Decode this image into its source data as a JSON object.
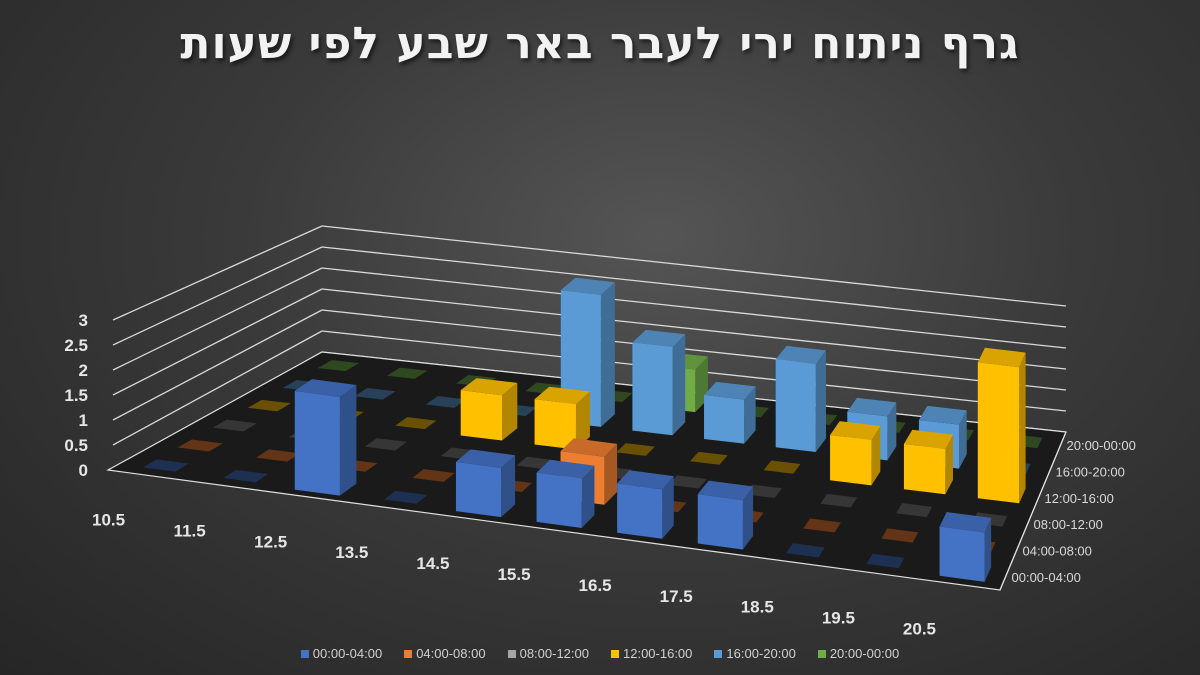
{
  "title": "גרף ניתוח ירי לעבר באר שבע לפי שעות",
  "legend": [
    {
      "label": "00:00-04:00",
      "color": "#4472c4"
    },
    {
      "label": "04:00-08:00",
      "color": "#ed7d31"
    },
    {
      "label": "08:00-12:00",
      "color": "#a5a5a5"
    },
    {
      "label": "12:00-16:00",
      "color": "#ffc000"
    },
    {
      "label": "16:00-20:00",
      "color": "#5b9bd5"
    },
    {
      "label": "20:00-00:00",
      "color": "#70ad47"
    }
  ],
  "chart_data": {
    "type": "bar",
    "subtype": "3d-column",
    "title": "גרף ניתוח ירי לעבר באר שבע לפי שעות",
    "xlabel": "",
    "ylabel": "",
    "zlabel": "",
    "ylim": [
      0,
      3
    ],
    "yticks": [
      "0",
      "0.5",
      "1",
      "1.5",
      "2",
      "2.5",
      "3"
    ],
    "categories": [
      "10.5",
      "11.5",
      "12.5",
      "13.5",
      "14.5",
      "15.5",
      "16.5",
      "17.5",
      "18.5",
      "19.5",
      "20.5"
    ],
    "depth_categories": [
      "00:00-04:00",
      "04:00-08:00",
      "08:00-12:00",
      "12:00-16:00",
      "16:00-20:00",
      "20:00-00:00"
    ],
    "grid": true,
    "legend_position": "bottom",
    "series": [
      {
        "name": "00:00-04:00",
        "color": "#4472c4",
        "values": [
          0,
          0,
          2,
          0,
          1,
          1,
          1,
          1,
          0,
          0,
          1
        ]
      },
      {
        "name": "04:00-08:00",
        "color": "#ed7d31",
        "values": [
          0,
          0,
          0,
          0,
          0,
          1,
          0,
          0,
          0,
          0,
          0
        ]
      },
      {
        "name": "08:00-12:00",
        "color": "#a5a5a5",
        "values": [
          0,
          0,
          0,
          0,
          0,
          0,
          0,
          0,
          0,
          0,
          0
        ]
      },
      {
        "name": "12:00-16:00",
        "color": "#ffc000",
        "values": [
          0,
          0,
          0,
          1,
          1,
          0,
          0,
          0,
          1,
          1,
          3
        ]
      },
      {
        "name": "16:00-20:00",
        "color": "#5b9bd5",
        "values": [
          0,
          0,
          0,
          0,
          3,
          2,
          1,
          2,
          1,
          1,
          0
        ]
      },
      {
        "name": "20:00-00:00",
        "color": "#70ad47",
        "values": [
          0,
          0,
          0,
          0,
          0,
          1,
          0,
          0,
          0,
          0,
          0
        ]
      }
    ]
  }
}
